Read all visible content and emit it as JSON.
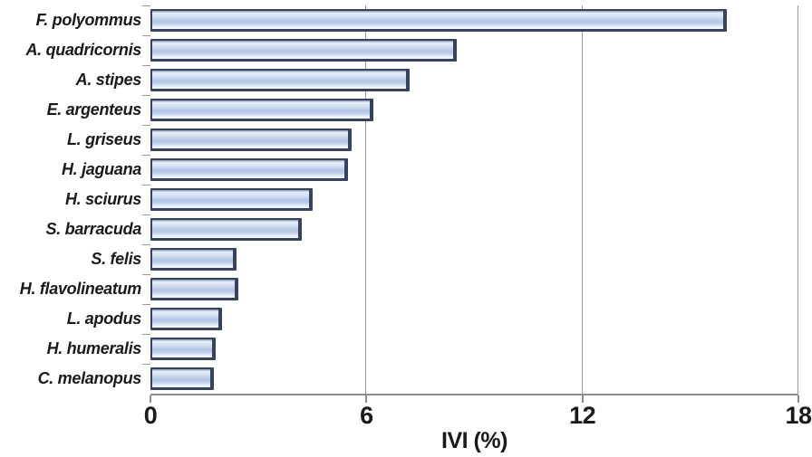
{
  "colors": {
    "background": "#ffffff",
    "text": "#1a1a1a",
    "bar_border": "#36425e",
    "bar_fill_light": "#e7eef9",
    "bar_fill_mid": "#b2c5e5",
    "gridline": "#9b9b9b",
    "axis": "#8c8c8c"
  },
  "chart_data": {
    "type": "bar",
    "orientation": "horizontal",
    "title": "",
    "xlabel": "IVI (%)",
    "ylabel": "",
    "xlim": [
      0,
      18
    ],
    "xticks": [
      0,
      6,
      12,
      18
    ],
    "grid": "vertical gridlines at 6, 12 and 18, behind bars",
    "legend": "none",
    "categories": [
      "F. polyommus",
      "A. quadricornis",
      "A. stipes",
      "E. argenteus",
      "L. griseus",
      "H. jaguana",
      "H. sciurus",
      "S. barracuda",
      "S. felis",
      "H. flavolineatum",
      "L. apodus",
      "H. humeralis",
      "C. melanopus"
    ],
    "values": [
      16.0,
      8.5,
      7.2,
      6.2,
      5.6,
      5.5,
      4.5,
      4.2,
      2.4,
      2.45,
      2.0,
      1.8,
      1.75
    ]
  }
}
